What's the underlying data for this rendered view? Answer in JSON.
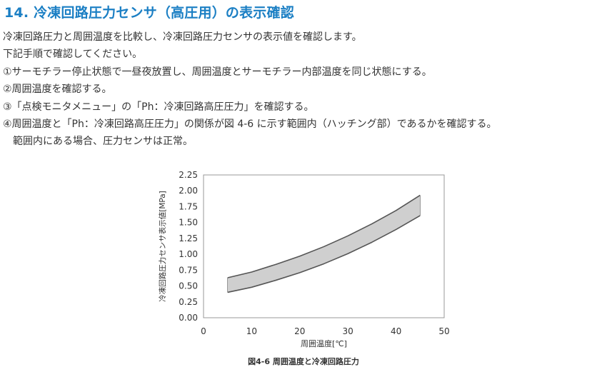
{
  "heading": {
    "number": "14.",
    "title": "冷凍回路圧力センサ（高圧用）の表示確認"
  },
  "paragraphs": [
    "冷凍回路圧力と周囲温度を比較し、冷凍回路圧力センサの表示値を確認します。",
    "下記手順で確認してください。"
  ],
  "steps": [
    "①サーモチラー停止状態で一昼夜放置し、周囲温度とサーモチラー内部温度を同じ状態にする。",
    "②周囲温度を確認する。",
    "③「点検モニタメニュー」の「Ph：冷凍回路高圧圧力」を確認する。",
    "④周囲温度と「Ph：冷凍回路高圧圧力」の関係が図 4-6 に示す範囲内（ハッチング部）であるかを確認する。"
  ],
  "step4_continuation": "範囲内にある場合、圧力センサは正常。",
  "figure_caption": "図4-6 周囲温度と冷凍回路圧力",
  "chart_data": {
    "type": "area",
    "title": "",
    "xlabel": "周囲温度[℃]",
    "ylabel": "冷凍回路圧力センサ表示値[MPa]",
    "xlim": [
      0,
      50
    ],
    "ylim": [
      0,
      2.25
    ],
    "xticks": [
      0,
      10,
      20,
      30,
      40,
      50
    ],
    "yticks": [
      0.0,
      0.25,
      0.5,
      0.75,
      1.0,
      1.25,
      1.5,
      1.75,
      2.0,
      2.25
    ],
    "ytick_labels": [
      "0.00",
      "0.25",
      "0.50",
      "0.75",
      "1.00",
      "1.25",
      "1.50",
      "1.75",
      "2.00",
      "2.25"
    ],
    "grid": false,
    "band": {
      "x": [
        5,
        10,
        15,
        20,
        25,
        30,
        35,
        40,
        45
      ],
      "upper": [
        0.63,
        0.72,
        0.84,
        0.97,
        1.12,
        1.29,
        1.48,
        1.69,
        1.93
      ],
      "lower": [
        0.4,
        0.48,
        0.59,
        0.71,
        0.85,
        1.01,
        1.19,
        1.39,
        1.61
      ]
    },
    "colors": {
      "band_fill": "#cfcfcf",
      "band_edge": "#555555",
      "frame": "#999999",
      "text": "#333333"
    }
  }
}
